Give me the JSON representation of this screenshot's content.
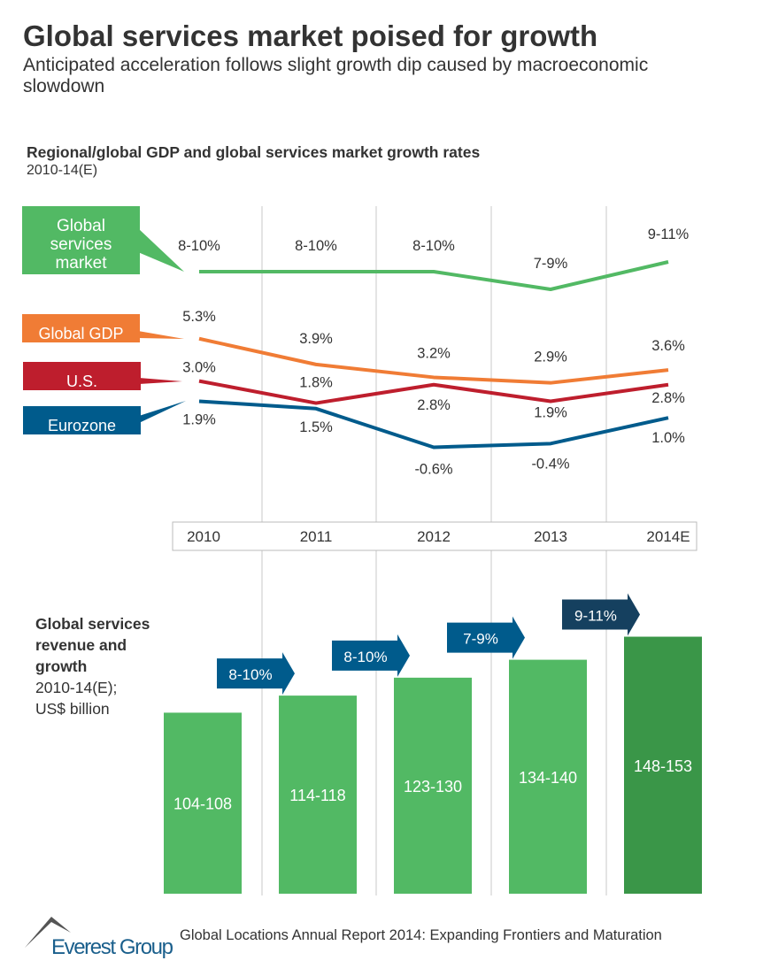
{
  "title": "Global services market poised for growth",
  "subtitle": "Anticipated acceleration follows slight growth dip caused by macroeconomic slowdown",
  "footer": {
    "brand": "Everest Group",
    "text": "Global Locations Annual Report 2014: Expanding Frontiers and Maturation"
  },
  "chart_data": [
    {
      "type": "line",
      "title": "Regional/global GDP and global services market growth rates",
      "subtitle": "2010-14(E)",
      "categories": [
        "2010",
        "2011",
        "2012",
        "2013",
        "2014E"
      ],
      "unit": "%",
      "series": [
        {
          "name": "Global services market",
          "color": "#52b964",
          "labels": [
            "8-10%",
            "8-10%",
            "8-10%",
            "7-9%",
            "9-11%"
          ],
          "values": [
            9,
            9,
            9,
            8,
            10
          ]
        },
        {
          "name": "Global GDP",
          "color": "#f07c35",
          "labels": [
            "5.3%",
            "3.9%",
            "3.2%",
            "2.9%",
            "3.6%"
          ],
          "values": [
            5.3,
            3.9,
            3.2,
            2.9,
            3.6
          ]
        },
        {
          "name": "U.S.",
          "color": "#be1e2d",
          "labels": [
            "3.0%",
            "1.8%",
            "2.8%",
            "1.9%",
            "2.8%"
          ],
          "values": [
            3.0,
            1.8,
            2.8,
            1.9,
            2.8
          ]
        },
        {
          "name": "Eurozone",
          "color": "#005b8c",
          "labels": [
            "1.9%",
            "1.5%",
            "-0.6%",
            "-0.4%",
            "1.0%"
          ],
          "values": [
            1.9,
            1.5,
            -0.6,
            -0.4,
            1.0
          ]
        }
      ]
    },
    {
      "type": "bar",
      "title": "Global services revenue and growth",
      "subtitle": "2010-14(E); US$ billion",
      "categories": [
        "2010",
        "2011",
        "2012",
        "2013",
        "2014E"
      ],
      "labels": [
        "104-108",
        "114-118",
        "123-130",
        "134-140",
        "148-153"
      ],
      "values": [
        [
          104,
          108
        ],
        [
          114,
          118
        ],
        [
          123,
          130
        ],
        [
          134,
          140
        ],
        [
          148,
          153
        ]
      ],
      "growth": [
        "",
        "8-10%",
        "8-10%",
        "7-9%",
        "9-11%"
      ],
      "colors": {
        "bar": "#52b964",
        "bar_estimate": "#3a9648",
        "arrow": "#005b8c",
        "arrow_estimate": "#15405f"
      }
    }
  ]
}
